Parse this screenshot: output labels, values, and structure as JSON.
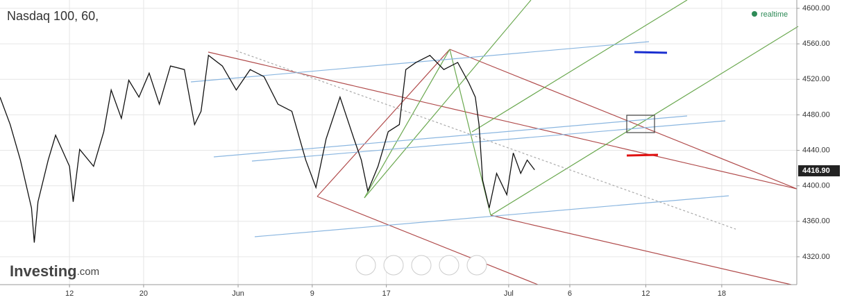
{
  "chart_data": {
    "type": "line",
    "title": "Nasdaq 100, 60,",
    "status": "realtime",
    "brand": "Investing",
    "brand_suffix": ".com",
    "x": [
      0,
      1.1,
      2.2,
      3.4,
      3.7,
      4.1,
      5.2,
      6,
      7.5,
      7.9,
      8.6,
      10.1,
      11.2,
      12,
      13.1,
      13.9,
      15,
      16.1,
      17.2,
      18.4,
      19.9,
      21,
      21.7,
      22.5,
      24,
      25.5,
      27,
      28.5,
      30,
      31.5,
      33,
      34.1,
      35.2,
      36.7,
      38.2,
      39,
      39.7,
      40.8,
      41.9,
      43.1,
      43.8,
      44.9,
      46.4,
      47.9,
      49.4,
      50.6,
      51.3,
      51.7,
      52.1,
      52.8,
      53.6,
      54.7,
      55.4,
      56.2,
      56.9,
      57.7
    ],
    "series": [
      {
        "color": "#111111",
        "values": [
          4500,
          4469,
          4429,
          4375,
          4336,
          4382,
          4429,
          4457,
          4422,
          4382,
          4441,
          4422,
          4461,
          4508,
          4476,
          4519,
          4500,
          4527,
          4492,
          4535,
          4531,
          4469,
          4484,
          4547,
          4535,
          4508,
          4531,
          4523,
          4492,
          4484,
          4429,
          4398,
          4453,
          4500,
          4453,
          4429,
          4394,
          4422,
          4461,
          4469,
          4531,
          4539,
          4547,
          4531,
          4539,
          4516,
          4500,
          4469,
          4406,
          4375,
          4414,
          4390,
          4437,
          4414,
          4429,
          4418
        ]
      }
    ],
    "last_value": {
      "value": 4416.9,
      "label": "4416.90"
    },
    "xlim": [
      0,
      86
    ],
    "ylim": [
      4288.6,
      4609.4
    ],
    "xticks": [
      {
        "value": 7.5,
        "label": "12"
      },
      {
        "value": 15.5,
        "label": "20"
      },
      {
        "value": 25.7,
        "label": "Jun"
      },
      {
        "value": 33.7,
        "label": "9"
      },
      {
        "value": 41.7,
        "label": "17"
      },
      {
        "value": 54.9,
        "label": "Jul"
      },
      {
        "value": 61.5,
        "label": "6"
      },
      {
        "value": 69.7,
        "label": "12"
      },
      {
        "value": 77.9,
        "label": "18"
      }
    ],
    "yticks": [
      {
        "value": 4320,
        "label": "4320.00"
      },
      {
        "value": 4360,
        "label": "4360.00"
      },
      {
        "value": 4400,
        "label": "4400.00"
      },
      {
        "value": 4440,
        "label": "4440.00"
      },
      {
        "value": 4480,
        "label": "4480.00"
      },
      {
        "value": 4520,
        "label": "4520.00"
      },
      {
        "value": 4560,
        "label": "4560.00"
      },
      {
        "value": 4600,
        "label": "4600.00"
      }
    ],
    "grid": true
  }
}
